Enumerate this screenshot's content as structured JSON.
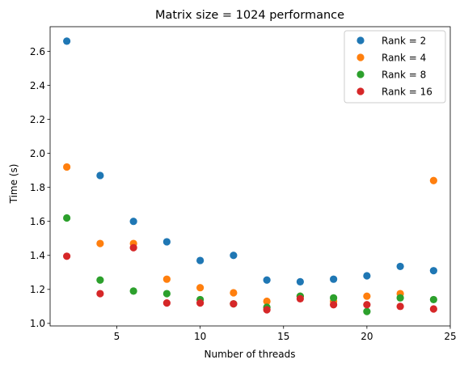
{
  "chart_data": {
    "type": "scatter",
    "title": "Matrix size = 1024 performance",
    "xlabel": "Number of threads",
    "ylabel": "Time (s)",
    "xlim": [
      1.0,
      25.0
    ],
    "ylim": [
      0.985,
      2.745
    ],
    "xticks": [
      5,
      10,
      15,
      20,
      25
    ],
    "yticks": [
      1.0,
      1.2,
      1.4,
      1.6,
      1.8,
      2.0,
      2.2,
      2.4,
      2.6
    ],
    "grid": false,
    "legend_position": "top-right",
    "series": [
      {
        "name": "Rank = 2",
        "color": "#1f77b4",
        "x": [
          2,
          4,
          6,
          8,
          10,
          12,
          14,
          16,
          18,
          20,
          22,
          24
        ],
        "y": [
          2.66,
          1.87,
          1.6,
          1.48,
          1.37,
          1.4,
          1.255,
          1.245,
          1.26,
          1.28,
          1.335,
          1.31
        ]
      },
      {
        "name": "Rank = 4",
        "color": "#ff7f0e",
        "x": [
          2,
          4,
          6,
          8,
          10,
          12,
          14,
          16,
          18,
          20,
          22,
          24
        ],
        "y": [
          1.92,
          1.47,
          1.47,
          1.26,
          1.21,
          1.18,
          1.13,
          1.16,
          1.13,
          1.16,
          1.175,
          1.84
        ]
      },
      {
        "name": "Rank = 8",
        "color": "#2ca02c",
        "x": [
          2,
          4,
          6,
          8,
          10,
          12,
          14,
          16,
          18,
          20,
          22,
          24
        ],
        "y": [
          1.62,
          1.255,
          1.19,
          1.175,
          1.14,
          1.115,
          1.095,
          1.16,
          1.15,
          1.07,
          1.15,
          1.14
        ]
      },
      {
        "name": "Rank = 16",
        "color": "#d62728",
        "x": [
          2,
          4,
          6,
          8,
          10,
          12,
          14,
          16,
          18,
          20,
          22,
          24
        ],
        "y": [
          1.395,
          1.175,
          1.445,
          1.12,
          1.12,
          1.115,
          1.08,
          1.145,
          1.11,
          1.11,
          1.1,
          1.085
        ]
      }
    ]
  }
}
